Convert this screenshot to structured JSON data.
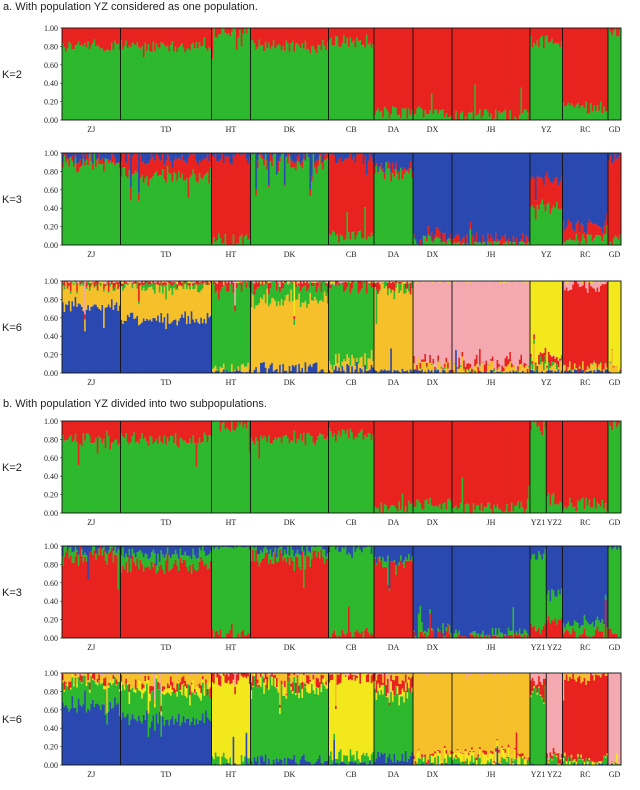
{
  "sections": [
    {
      "title": "a. With population YZ considered as one population.",
      "populations": [
        "ZJ",
        "TD",
        "HT",
        "DK",
        "CB",
        "DA",
        "DX",
        "JH",
        "YZ",
        "RC",
        "GD"
      ],
      "rel_widths": [
        0.9,
        1.4,
        0.6,
        1.2,
        0.7,
        0.6,
        0.6,
        1.2,
        0.5,
        0.7,
        0.2
      ],
      "panels": [
        {
          "k_label": "K=2",
          "k": 2,
          "colors": [
            "#2db82d",
            "#e8231f"
          ],
          "pop_means": [
            [
              0.8,
              0.2
            ],
            [
              0.8,
              0.2
            ],
            [
              0.96,
              0.04
            ],
            [
              0.8,
              0.2
            ],
            [
              0.85,
              0.15
            ],
            [
              0.08,
              0.92
            ],
            [
              0.1,
              0.9
            ],
            [
              0.05,
              0.95
            ],
            [
              0.85,
              0.15
            ],
            [
              0.15,
              0.85
            ],
            [
              0.97,
              0.03
            ]
          ]
        },
        {
          "k_label": "K=3",
          "k": 3,
          "colors": [
            "#2db82d",
            "#e8231f",
            "#2a49b0"
          ],
          "pop_means": [
            [
              0.9,
              0.05,
              0.05
            ],
            [
              0.75,
              0.2,
              0.05
            ],
            [
              0.05,
              0.9,
              0.05
            ],
            [
              0.9,
              0.05,
              0.05
            ],
            [
              0.1,
              0.85,
              0.05
            ],
            [
              0.8,
              0.05,
              0.15
            ],
            [
              0.05,
              0.05,
              0.9
            ],
            [
              0.02,
              0.03,
              0.95
            ],
            [
              0.4,
              0.3,
              0.3
            ],
            [
              0.05,
              0.15,
              0.8
            ],
            [
              0.05,
              0.9,
              0.05
            ]
          ]
        },
        {
          "k_label": "K=6",
          "k": 6,
          "colors": [
            "#2a49b0",
            "#f6c02a",
            "#2db82d",
            "#e8231f",
            "#f4a9b0",
            "#f2e81c"
          ],
          "pop_means": [
            [
              0.75,
              0.2,
              0.02,
              0.03,
              0,
              0
            ],
            [
              0.6,
              0.35,
              0.03,
              0.02,
              0,
              0
            ],
            [
              0.02,
              0.03,
              0.9,
              0.05,
              0,
              0
            ],
            [
              0.05,
              0.75,
              0.15,
              0.05,
              0,
              0
            ],
            [
              0.05,
              0.1,
              0.8,
              0.05,
              0,
              0
            ],
            [
              0.02,
              0.9,
              0.03,
              0.05,
              0,
              0
            ],
            [
              0.02,
              0.05,
              0,
              0.03,
              0.9,
              0
            ],
            [
              0.01,
              0.04,
              0,
              0.05,
              0.9,
              0
            ],
            [
              0.02,
              0.05,
              0.03,
              0.05,
              0,
              0.85
            ],
            [
              0.02,
              0.03,
              0,
              0.9,
              0.05,
              0
            ],
            [
              0,
              0.05,
              0,
              0,
              0,
              0.95
            ]
          ]
        }
      ]
    },
    {
      "title": "b. With population YZ divided into two subpopulations.",
      "populations": [
        "ZJ",
        "TD",
        "HT",
        "DK",
        "CB",
        "DA",
        "DX",
        "JH",
        "YZ1",
        "YZ2",
        "RC",
        "GD"
      ],
      "rel_widths": [
        0.9,
        1.4,
        0.6,
        1.2,
        0.7,
        0.6,
        0.6,
        1.2,
        0.25,
        0.25,
        0.7,
        0.2
      ],
      "panels": [
        {
          "k_label": "K=2",
          "k": 2,
          "colors": [
            "#2db82d",
            "#e8231f"
          ],
          "pop_means": [
            [
              0.8,
              0.2
            ],
            [
              0.8,
              0.2
            ],
            [
              0.96,
              0.04
            ],
            [
              0.8,
              0.2
            ],
            [
              0.85,
              0.15
            ],
            [
              0.08,
              0.92
            ],
            [
              0.1,
              0.9
            ],
            [
              0.05,
              0.95
            ],
            [
              0.95,
              0.05
            ],
            [
              0.15,
              0.85
            ],
            [
              0.1,
              0.9
            ],
            [
              0.97,
              0.03
            ]
          ]
        },
        {
          "k_label": "K=3",
          "k": 3,
          "colors": [
            "#e8231f",
            "#2db82d",
            "#2a49b0"
          ],
          "pop_means": [
            [
              0.9,
              0.05,
              0.05
            ],
            [
              0.8,
              0.12,
              0.08
            ],
            [
              0.03,
              0.95,
              0.02
            ],
            [
              0.85,
              0.1,
              0.05
            ],
            [
              0.05,
              0.9,
              0.05
            ],
            [
              0.8,
              0.05,
              0.15
            ],
            [
              0.03,
              0.05,
              0.92
            ],
            [
              0.02,
              0.03,
              0.95
            ],
            [
              0.1,
              0.8,
              0.1
            ],
            [
              0.2,
              0.3,
              0.5
            ],
            [
              0.05,
              0.1,
              0.85
            ],
            [
              0.03,
              0.95,
              0.02
            ]
          ]
        },
        {
          "k_label": "K=6",
          "k": 6,
          "colors": [
            "#2a49b0",
            "#2db82d",
            "#f2e81c",
            "#e8231f",
            "#f6c02a",
            "#f4a9b0"
          ],
          "pop_means": [
            [
              0.65,
              0.25,
              0.02,
              0.03,
              0.05,
              0
            ],
            [
              0.5,
              0.3,
              0.05,
              0.05,
              0.1,
              0
            ],
            [
              0,
              0.05,
              0.9,
              0.05,
              0,
              0
            ],
            [
              0.05,
              0.8,
              0.05,
              0.05,
              0.05,
              0
            ],
            [
              0.02,
              0.08,
              0.85,
              0.05,
              0,
              0
            ],
            [
              0.1,
              0.7,
              0.05,
              0.1,
              0.05,
              0
            ],
            [
              0,
              0.03,
              0.05,
              0.02,
              0.9,
              0
            ],
            [
              0,
              0.03,
              0.05,
              0.02,
              0.9,
              0
            ],
            [
              0,
              0.8,
              0,
              0.1,
              0,
              0.1
            ],
            [
              0,
              0.05,
              0,
              0.05,
              0,
              0.9
            ],
            [
              0,
              0.03,
              0.02,
              0.9,
              0.05,
              0
            ],
            [
              0,
              0,
              0,
              0,
              0,
              1
            ]
          ]
        }
      ]
    }
  ],
  "y_ticks": [
    "0.00",
    "0.20",
    "0.40",
    "0.60",
    "0.80",
    "1.00"
  ],
  "chart_data": [
    {
      "type": "bar",
      "subtype": "stacked-admixture",
      "title": "a. With population YZ considered as one population.",
      "panel": "K=2",
      "categories": [
        "ZJ",
        "TD",
        "HT",
        "DK",
        "CB",
        "DA",
        "DX",
        "JH",
        "YZ",
        "RC",
        "GD"
      ],
      "ylim": [
        0,
        1
      ]
    },
    {
      "type": "bar",
      "subtype": "stacked-admixture",
      "title": "a. With population YZ considered as one population.",
      "panel": "K=3",
      "categories": [
        "ZJ",
        "TD",
        "HT",
        "DK",
        "CB",
        "DA",
        "DX",
        "JH",
        "YZ",
        "RC",
        "GD"
      ],
      "ylim": [
        0,
        1
      ]
    },
    {
      "type": "bar",
      "subtype": "stacked-admixture",
      "title": "a. With population YZ considered as one population.",
      "panel": "K=6",
      "categories": [
        "ZJ",
        "TD",
        "HT",
        "DK",
        "CB",
        "DA",
        "DX",
        "JH",
        "YZ",
        "RC",
        "GD"
      ],
      "ylim": [
        0,
        1
      ]
    },
    {
      "type": "bar",
      "subtype": "stacked-admixture",
      "title": "b. With population YZ divided into two subpopulations.",
      "panel": "K=2",
      "categories": [
        "ZJ",
        "TD",
        "HT",
        "DK",
        "CB",
        "DA",
        "DX",
        "JH",
        "YZ1",
        "YZ2",
        "RC",
        "GD"
      ],
      "ylim": [
        0,
        1
      ]
    },
    {
      "type": "bar",
      "subtype": "stacked-admixture",
      "title": "b. With population YZ divided into two subpopulations.",
      "panel": "K=3",
      "categories": [
        "ZJ",
        "TD",
        "HT",
        "DK",
        "CB",
        "DA",
        "DX",
        "JH",
        "YZ1",
        "YZ2",
        "RC",
        "GD"
      ],
      "ylim": [
        0,
        1
      ]
    },
    {
      "type": "bar",
      "subtype": "stacked-admixture",
      "title": "b. With population YZ divided into two subpopulations.",
      "panel": "K=6",
      "categories": [
        "ZJ",
        "TD",
        "HT",
        "DK",
        "CB",
        "DA",
        "DX",
        "JH",
        "YZ1",
        "YZ2",
        "RC",
        "GD"
      ],
      "ylim": [
        0,
        1
      ]
    }
  ]
}
